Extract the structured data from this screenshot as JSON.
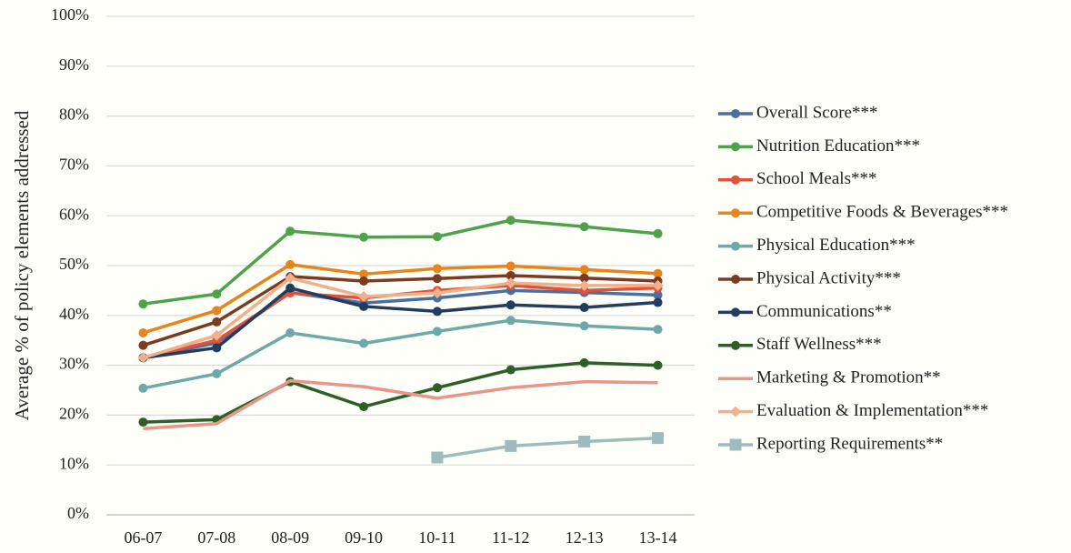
{
  "chart_data": {
    "type": "line",
    "y_label": "Average % of policy elements addressed",
    "categories": [
      "06-07",
      "07-08",
      "08-09",
      "09-10",
      "10-11",
      "11-12",
      "12-13",
      "13-14"
    ],
    "ylim": [
      0,
      100
    ],
    "yticks": [
      {
        "value": 0,
        "label": "0%"
      },
      {
        "value": 10,
        "label": "10%"
      },
      {
        "value": 20,
        "label": "20%"
      },
      {
        "value": 30,
        "label": "30%"
      },
      {
        "value": 40,
        "label": "40%"
      },
      {
        "value": 50,
        "label": "50%"
      },
      {
        "value": 60,
        "label": "60%"
      },
      {
        "value": 70,
        "label": "70%"
      },
      {
        "value": 80,
        "label": "80%"
      },
      {
        "value": 90,
        "label": "90%"
      },
      {
        "value": 100,
        "label": "100%"
      }
    ],
    "grid": true,
    "legend": "right",
    "series": [
      {
        "name": "Overall Score***",
        "color": "#4a6fa0",
        "marker": "circle",
        "values": [
          31.5,
          34.5,
          44.6,
          42.5,
          43.5,
          45,
          44.6,
          44.1
        ]
      },
      {
        "name": "Nutrition Education***",
        "color": "#4ea24a",
        "marker": "circle",
        "values": [
          42.3,
          44.3,
          56.9,
          55.7,
          55.8,
          59.1,
          57.8,
          56.4
        ]
      },
      {
        "name": "School Meals***",
        "color": "#e0533a",
        "marker": "circle",
        "values": [
          31.5,
          35,
          44.5,
          43.5,
          45,
          46,
          45,
          45.5
        ]
      },
      {
        "name": "Competitive Foods & Beverages***",
        "color": "#e8841c",
        "marker": "circle",
        "values": [
          36.5,
          41,
          50.2,
          48.3,
          49.4,
          49.9,
          49.2,
          48.4
        ]
      },
      {
        "name": "Physical Education***",
        "color": "#6fa8a8",
        "marker": "circle",
        "values": [
          25.4,
          28.3,
          36.5,
          34.4,
          36.8,
          39,
          37.9,
          37.2
        ]
      },
      {
        "name": "Physical Activity***",
        "color": "#7a3b22",
        "marker": "circle",
        "values": [
          34,
          38.7,
          47.8,
          46.9,
          47.4,
          48,
          47.5,
          46.9
        ]
      },
      {
        "name": "Communications**",
        "color": "#243c5e",
        "marker": "circle",
        "values": [
          31.5,
          33.5,
          45.5,
          41.8,
          40.8,
          42.1,
          41.6,
          42.6
        ]
      },
      {
        "name": "Staff Wellness***",
        "color": "#2e5f28",
        "marker": "circle",
        "values": [
          18.6,
          19.1,
          26.7,
          21.7,
          25.5,
          29.1,
          30.5,
          30
        ]
      },
      {
        "name": "Marketing & Promotion**",
        "color": "#e8958a",
        "marker": "none",
        "values": [
          17.3,
          18.3,
          26.9,
          25.7,
          23.4,
          25.5,
          26.7,
          26.5
        ]
      },
      {
        "name": "Evaluation & Implementation***",
        "color": "#f0b08c",
        "marker": "diamond",
        "values": [
          31.5,
          36,
          47.5,
          43.8,
          44.5,
          46.5,
          46,
          46
        ]
      },
      {
        "name": "Reporting Requirements**",
        "color": "#9dbcbf",
        "marker": "square",
        "values": [
          null,
          null,
          null,
          null,
          11.5,
          13.8,
          14.7,
          15.4
        ]
      }
    ]
  }
}
